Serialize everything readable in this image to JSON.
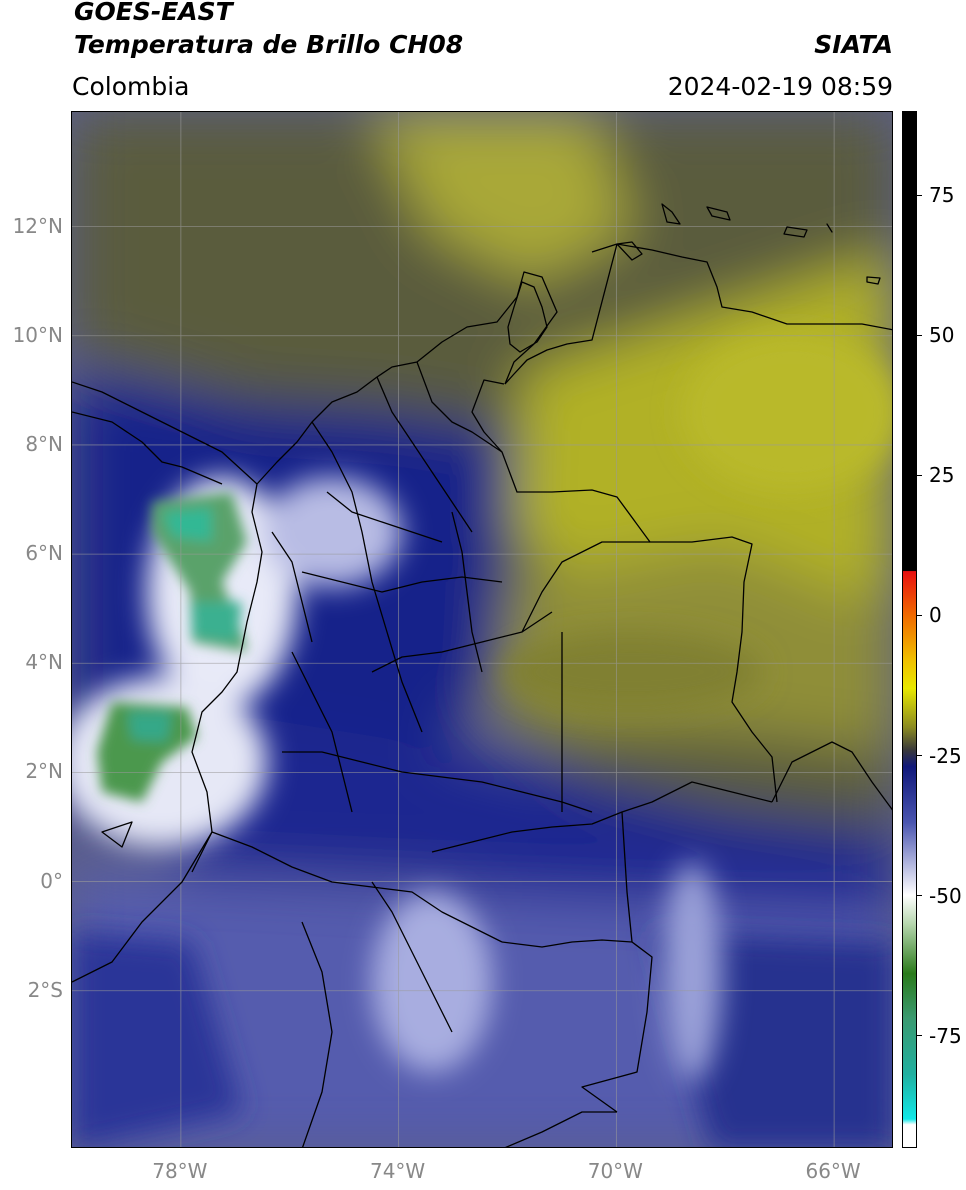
{
  "header": {
    "satellite": "GOES-EAST",
    "product": "Temperatura de Brillo CH08",
    "source": "SIATA",
    "region": "Colombia",
    "datetime": "2024-02-19 08:59"
  },
  "map": {
    "lon_range": [
      -80,
      -64.9
    ],
    "lat_range": [
      -4.9,
      14.1
    ],
    "lat_ticks": [
      {
        "value": 12,
        "label": "12°N"
      },
      {
        "value": 10,
        "label": "10°N"
      },
      {
        "value": 8,
        "label": "8°N"
      },
      {
        "value": 6,
        "label": "6°N"
      },
      {
        "value": 4,
        "label": "4°N"
      },
      {
        "value": 2,
        "label": "2°N"
      },
      {
        "value": 0,
        "label": "0°"
      },
      {
        "value": -2,
        "label": "2°S"
      }
    ],
    "lon_ticks": [
      {
        "value": -78,
        "label": "78°W"
      },
      {
        "value": -74,
        "label": "74°W"
      },
      {
        "value": -70,
        "label": "70°W"
      },
      {
        "value": -66,
        "label": "66°W"
      }
    ],
    "gridlines": true,
    "colors": {
      "yellow_olive": "#b5b52a",
      "dark_olive": "#6a6a3a",
      "navy": "#1c2587",
      "lavender": "#7a82c0",
      "white": "#ffffff",
      "green": "#4a9a4a",
      "teal": "#2ab89a"
    }
  },
  "colorbar": {
    "range": [
      -95,
      90
    ],
    "ticks": [
      {
        "value": 75,
        "label": "75"
      },
      {
        "value": 50,
        "label": "50"
      },
      {
        "value": 25,
        "label": "25"
      },
      {
        "value": 0,
        "label": "0"
      },
      {
        "value": -25,
        "label": "-25"
      },
      {
        "value": -50,
        "label": "-50"
      },
      {
        "value": -75,
        "label": "-75"
      }
    ],
    "stops": [
      {
        "value": 90,
        "color": "#000000"
      },
      {
        "value": 8,
        "color": "#000000"
      },
      {
        "value": 7.9,
        "color": "#e81010"
      },
      {
        "value": 0,
        "color": "#f06a00"
      },
      {
        "value": -8,
        "color": "#f0c000"
      },
      {
        "value": -13,
        "color": "#e8e800"
      },
      {
        "value": -20,
        "color": "#8a8a20"
      },
      {
        "value": -24,
        "color": "#3a3a3a"
      },
      {
        "value": -27,
        "color": "#10187a"
      },
      {
        "value": -37,
        "color": "#4a55b0"
      },
      {
        "value": -46,
        "color": "#c8cbe8"
      },
      {
        "value": -50,
        "color": "#ffffff"
      },
      {
        "value": -55,
        "color": "#b8d8b0"
      },
      {
        "value": -64,
        "color": "#2a7a1a"
      },
      {
        "value": -72,
        "color": "#3a9a70"
      },
      {
        "value": -82,
        "color": "#20b0a0"
      },
      {
        "value": -90,
        "color": "#10e8e8"
      },
      {
        "value": -91,
        "color": "#ffffff"
      },
      {
        "value": -95,
        "color": "#ffffff"
      }
    ]
  }
}
